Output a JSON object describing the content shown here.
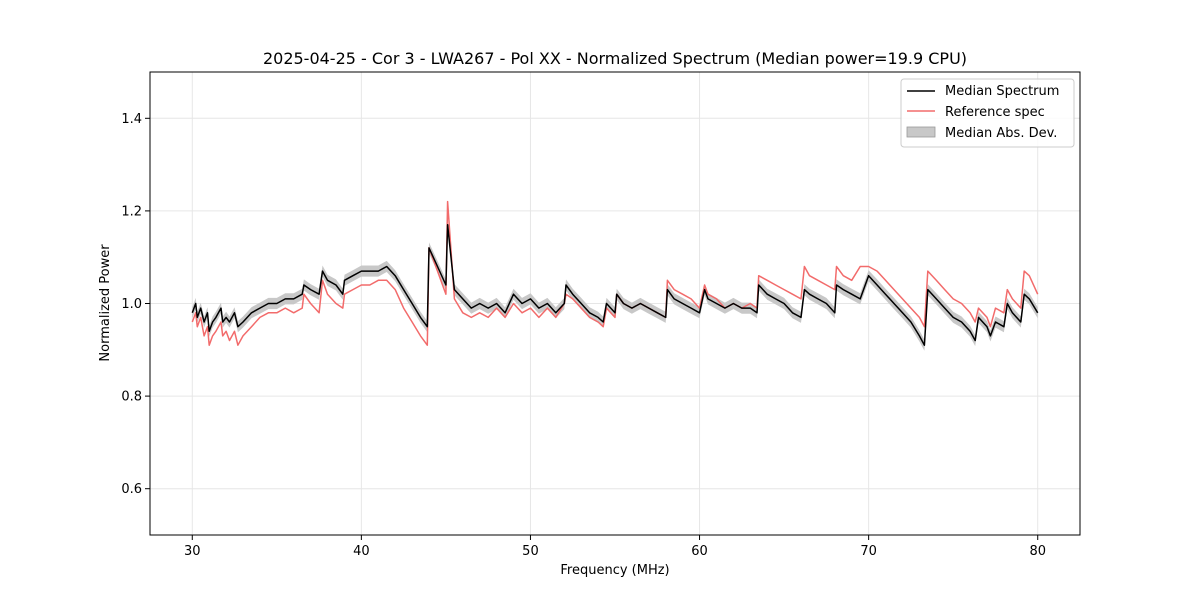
{
  "chart_data": {
    "type": "line",
    "title": "2025-04-25 - Cor 3 - LWA267 - Pol XX - Normalized Spectrum (Median power=19.9 CPU)",
    "xlabel": "Frequency (MHz)",
    "ylabel": "Normalized Power",
    "xlim": [
      27.5,
      82.5
    ],
    "ylim": [
      0.5,
      1.5
    ],
    "xticks": [
      30,
      40,
      50,
      60,
      70,
      80
    ],
    "yticks": [
      0.6,
      0.8,
      1.0,
      1.2,
      1.4
    ],
    "xtick_labels": [
      "30",
      "40",
      "50",
      "60",
      "70",
      "80"
    ],
    "ytick_labels": [
      "0.6",
      "0.8",
      "1.0",
      "1.2",
      "1.4"
    ],
    "grid": true,
    "legend_position": "top-right",
    "series": [
      {
        "name": "Median Spectrum",
        "color": "#000000",
        "x": [
          30.0,
          30.2,
          30.3,
          30.5,
          30.7,
          30.9,
          31.0,
          31.2,
          31.4,
          31.7,
          31.8,
          32.0,
          32.2,
          32.5,
          32.7,
          33.0,
          33.5,
          34.0,
          34.5,
          35.0,
          35.5,
          36.0,
          36.5,
          36.6,
          37.0,
          37.5,
          37.7,
          38.0,
          38.5,
          38.9,
          39.0,
          39.5,
          40.0,
          40.5,
          41.0,
          41.5,
          42.0,
          42.5,
          43.0,
          43.5,
          43.9,
          44.0,
          44.5,
          45.0,
          45.1,
          45.5,
          46.0,
          46.5,
          47.0,
          47.5,
          48.0,
          48.5,
          49.0,
          49.5,
          50.0,
          50.5,
          51.0,
          51.5,
          52.0,
          52.1,
          52.5,
          53.0,
          53.5,
          54.0,
          54.3,
          54.5,
          55.0,
          55.1,
          55.5,
          56.0,
          56.5,
          57.0,
          57.5,
          58.0,
          58.1,
          58.5,
          59.0,
          59.5,
          60.0,
          60.3,
          60.5,
          61.0,
          61.5,
          62.0,
          62.5,
          63.0,
          63.4,
          63.5,
          64.0,
          64.5,
          65.0,
          65.5,
          66.0,
          66.2,
          66.5,
          67.0,
          67.5,
          68.0,
          68.1,
          68.5,
          69.0,
          69.5,
          70.0,
          70.5,
          71.0,
          71.5,
          72.0,
          72.5,
          73.0,
          73.3,
          73.5,
          74.0,
          74.5,
          75.0,
          75.5,
          76.0,
          76.3,
          76.5,
          77.0,
          77.2,
          77.5,
          78.0,
          78.2,
          78.5,
          79.0,
          79.2,
          79.5,
          80.0
        ],
        "y": [
          0.98,
          1.0,
          0.97,
          0.99,
          0.96,
          0.98,
          0.94,
          0.96,
          0.97,
          0.99,
          0.96,
          0.97,
          0.96,
          0.98,
          0.95,
          0.96,
          0.98,
          0.99,
          1.0,
          1.0,
          1.01,
          1.01,
          1.02,
          1.04,
          1.03,
          1.02,
          1.07,
          1.05,
          1.04,
          1.02,
          1.05,
          1.06,
          1.07,
          1.07,
          1.07,
          1.08,
          1.06,
          1.03,
          1.0,
          0.97,
          0.95,
          1.12,
          1.08,
          1.04,
          1.17,
          1.03,
          1.01,
          0.99,
          1.0,
          0.99,
          1.0,
          0.98,
          1.02,
          1.0,
          1.01,
          0.99,
          1.0,
          0.98,
          1.0,
          1.04,
          1.02,
          1.0,
          0.98,
          0.97,
          0.96,
          1.0,
          0.98,
          1.02,
          1.0,
          0.99,
          1.0,
          0.99,
          0.98,
          0.97,
          1.03,
          1.01,
          1.0,
          0.99,
          0.98,
          1.03,
          1.01,
          1.0,
          0.99,
          1.0,
          0.99,
          0.99,
          0.98,
          1.04,
          1.02,
          1.01,
          1.0,
          0.98,
          0.97,
          1.03,
          1.02,
          1.01,
          1.0,
          0.98,
          1.04,
          1.03,
          1.02,
          1.01,
          1.06,
          1.04,
          1.02,
          1.0,
          0.98,
          0.96,
          0.93,
          0.91,
          1.03,
          1.01,
          0.99,
          0.97,
          0.96,
          0.94,
          0.92,
          0.97,
          0.95,
          0.93,
          0.96,
          0.95,
          1.0,
          0.98,
          0.96,
          1.02,
          1.01,
          0.98
        ]
      },
      {
        "name": "Reference spec",
        "color": "#f26b6b",
        "x": [
          30.0,
          30.2,
          30.3,
          30.5,
          30.7,
          30.9,
          31.0,
          31.2,
          31.4,
          31.7,
          31.8,
          32.0,
          32.2,
          32.5,
          32.7,
          33.0,
          33.5,
          34.0,
          34.5,
          35.0,
          35.5,
          36.0,
          36.5,
          36.6,
          37.0,
          37.5,
          37.7,
          38.0,
          38.5,
          38.9,
          39.0,
          39.5,
          40.0,
          40.5,
          41.0,
          41.5,
          42.0,
          42.5,
          43.0,
          43.5,
          43.9,
          44.0,
          44.5,
          45.0,
          45.1,
          45.5,
          46.0,
          46.5,
          47.0,
          47.5,
          48.0,
          48.5,
          49.0,
          49.5,
          50.0,
          50.5,
          51.0,
          51.5,
          52.0,
          52.1,
          52.5,
          53.0,
          53.5,
          54.0,
          54.3,
          54.5,
          55.0,
          55.1,
          55.5,
          56.0,
          56.5,
          57.0,
          57.5,
          58.0,
          58.1,
          58.5,
          59.0,
          59.5,
          60.0,
          60.3,
          60.5,
          61.0,
          61.5,
          62.0,
          62.5,
          63.0,
          63.4,
          63.5,
          64.0,
          64.5,
          65.0,
          65.5,
          66.0,
          66.2,
          66.5,
          67.0,
          67.5,
          68.0,
          68.1,
          68.5,
          69.0,
          69.5,
          70.0,
          70.5,
          71.0,
          71.5,
          72.0,
          72.5,
          73.0,
          73.3,
          73.5,
          74.0,
          74.5,
          75.0,
          75.5,
          76.0,
          76.3,
          76.5,
          77.0,
          77.2,
          77.5,
          78.0,
          78.2,
          78.5,
          79.0,
          79.2,
          79.5,
          80.0
        ],
        "y": [
          0.96,
          0.98,
          0.95,
          0.97,
          0.93,
          0.95,
          0.91,
          0.93,
          0.94,
          0.96,
          0.93,
          0.94,
          0.92,
          0.94,
          0.91,
          0.93,
          0.95,
          0.97,
          0.98,
          0.98,
          0.99,
          0.98,
          0.99,
          1.02,
          1.0,
          0.98,
          1.05,
          1.02,
          1.0,
          0.99,
          1.02,
          1.03,
          1.04,
          1.04,
          1.05,
          1.05,
          1.03,
          0.99,
          0.96,
          0.93,
          0.91,
          1.12,
          1.07,
          1.02,
          1.22,
          1.01,
          0.98,
          0.97,
          0.98,
          0.97,
          0.99,
          0.97,
          1.0,
          0.98,
          0.99,
          0.97,
          0.99,
          0.97,
          1.0,
          1.02,
          1.01,
          0.99,
          0.97,
          0.96,
          0.95,
          0.99,
          0.97,
          1.02,
          1.0,
          0.99,
          1.0,
          0.99,
          0.98,
          0.97,
          1.05,
          1.03,
          1.02,
          1.01,
          0.99,
          1.04,
          1.02,
          1.01,
          0.99,
          1.0,
          0.99,
          1.0,
          0.99,
          1.06,
          1.05,
          1.04,
          1.03,
          1.02,
          1.01,
          1.08,
          1.06,
          1.05,
          1.04,
          1.03,
          1.08,
          1.06,
          1.05,
          1.08,
          1.08,
          1.07,
          1.05,
          1.03,
          1.01,
          0.99,
          0.97,
          0.95,
          1.07,
          1.05,
          1.03,
          1.01,
          1.0,
          0.98,
          0.96,
          0.99,
          0.97,
          0.95,
          0.99,
          0.98,
          1.03,
          1.01,
          0.99,
          1.07,
          1.06,
          1.02
        ]
      },
      {
        "name": "Median Abs. Dev.",
        "color": "#bdbdbd",
        "type": "band",
        "center_series": "Median Spectrum",
        "half_width": 0.012
      }
    ]
  }
}
